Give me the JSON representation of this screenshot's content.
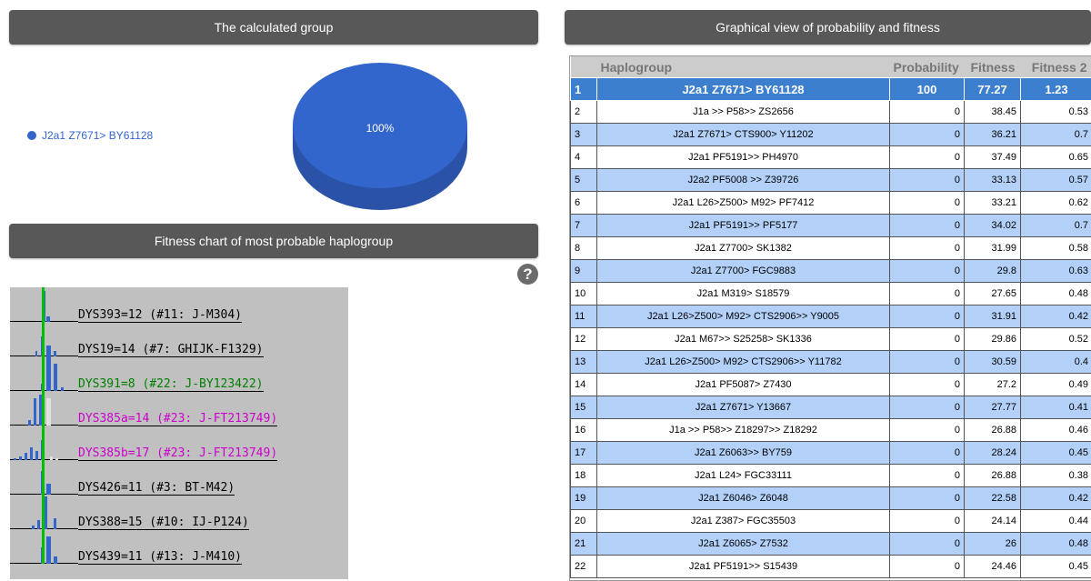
{
  "headers": {
    "group": "The calculated group",
    "graph": "Graphical view of probability and fitness",
    "fitness": "Fitness chart of most probable haplogroup"
  },
  "legend": {
    "label": "J2a1 Z7671> BY61128",
    "color": "#3366cc"
  },
  "pie": {
    "label": "100%",
    "slices": [
      {
        "name": "J2a1 Z7671> BY61128",
        "value": 100
      }
    ]
  },
  "help_icon": "question-icon",
  "fitness_chart": [
    {
      "label": "DYS393=12 (#11: J-M304)",
      "color": "#000000"
    },
    {
      "label": "DYS19=14 (#7: GHIJK-F1329)",
      "color": "#000000"
    },
    {
      "label": "DYS391=8 (#22: J-BY123422)",
      "color": "#008000"
    },
    {
      "label": "DYS385a=14 (#23: J-FT213749)",
      "color": "#cc00cc"
    },
    {
      "label": "DYS385b=17 (#23: J-FT213749)",
      "color": "#cc00cc"
    },
    {
      "label": "DYS426=11 (#3: BT-M42)",
      "color": "#000000"
    },
    {
      "label": "DYS388=15 (#10: IJ-P124)",
      "color": "#000000"
    },
    {
      "label": "DYS439=11 (#13: J-M410)",
      "color": "#000000"
    }
  ],
  "table": {
    "columns": [
      "",
      "Haplogroup",
      "Probability",
      "Fitness",
      "Fitness 2"
    ],
    "rows": [
      {
        "n": "1",
        "hap": "J2a1 Z7671> BY61128",
        "prob": "100",
        "fit": "77.27",
        "fit2": "1.23"
      },
      {
        "n": "2",
        "hap": "J1a >> P58>> ZS2656",
        "prob": "0",
        "fit": "38.45",
        "fit2": "0.53"
      },
      {
        "n": "3",
        "hap": "J2a1 Z7671> CTS900> Y11202",
        "prob": "0",
        "fit": "36.21",
        "fit2": "0.7"
      },
      {
        "n": "4",
        "hap": "J2a1 PF5191>> PH4970",
        "prob": "0",
        "fit": "37.49",
        "fit2": "0.65"
      },
      {
        "n": "5",
        "hap": "J2a2 PF5008 >> Z39726",
        "prob": "0",
        "fit": "33.13",
        "fit2": "0.57"
      },
      {
        "n": "6",
        "hap": "J2a1 L26>Z500> M92> PF7412",
        "prob": "0",
        "fit": "33.21",
        "fit2": "0.62"
      },
      {
        "n": "7",
        "hap": "J2a1 PF5191>> PF5177",
        "prob": "0",
        "fit": "34.02",
        "fit2": "0.7"
      },
      {
        "n": "8",
        "hap": "J2a1 Z7700> SK1382",
        "prob": "0",
        "fit": "31.99",
        "fit2": "0.58"
      },
      {
        "n": "9",
        "hap": "J2a1 Z7700> FGC9883",
        "prob": "0",
        "fit": "29.8",
        "fit2": "0.63"
      },
      {
        "n": "10",
        "hap": "J2a1 M319> S18579",
        "prob": "0",
        "fit": "27.65",
        "fit2": "0.48"
      },
      {
        "n": "11",
        "hap": "J2a1 L26>Z500> M92> CTS2906>> Y9005",
        "prob": "0",
        "fit": "31.91",
        "fit2": "0.42"
      },
      {
        "n": "12",
        "hap": "J2a1 M67>> S25258> SK1336",
        "prob": "0",
        "fit": "29.86",
        "fit2": "0.52"
      },
      {
        "n": "13",
        "hap": "J2a1 L26>Z500> M92> CTS2906>> Y11782",
        "prob": "0",
        "fit": "30.59",
        "fit2": "0.4"
      },
      {
        "n": "14",
        "hap": "J2a1 PF5087> Z7430",
        "prob": "0",
        "fit": "27.2",
        "fit2": "0.49"
      },
      {
        "n": "15",
        "hap": "J2a1 Z7671> Y13667",
        "prob": "0",
        "fit": "27.77",
        "fit2": "0.41"
      },
      {
        "n": "16",
        "hap": "J1a >> P58>> Z18297>> Z18292",
        "prob": "0",
        "fit": "26.88",
        "fit2": "0.46"
      },
      {
        "n": "17",
        "hap": "J2a1 Z6063>> BY759",
        "prob": "0",
        "fit": "28.24",
        "fit2": "0.45"
      },
      {
        "n": "18",
        "hap": "J2a1 L24> FGC33111",
        "prob": "0",
        "fit": "26.88",
        "fit2": "0.38"
      },
      {
        "n": "19",
        "hap": "J2a1 Z6046> Z6048",
        "prob": "0",
        "fit": "22.58",
        "fit2": "0.42"
      },
      {
        "n": "20",
        "hap": "J2a1 Z387> FGC35503",
        "prob": "0",
        "fit": "24.14",
        "fit2": "0.44"
      },
      {
        "n": "21",
        "hap": "J2a1 Z6065> Z7532",
        "prob": "0",
        "fit": "26",
        "fit2": "0.48"
      },
      {
        "n": "22",
        "hap": "J2a1 PF5191>> S15439",
        "prob": "0",
        "fit": "24.46",
        "fit2": "0.45"
      }
    ]
  }
}
